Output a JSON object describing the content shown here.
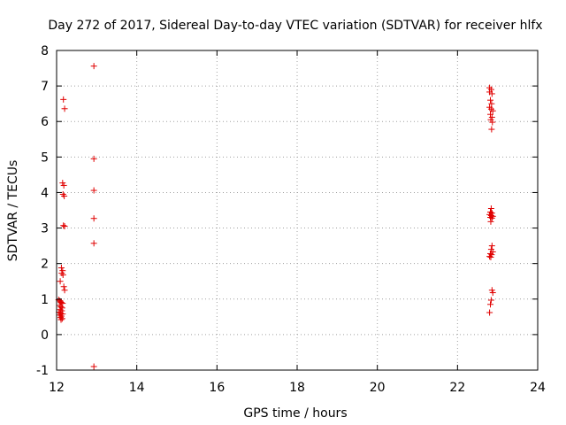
{
  "chart_data": {
    "type": "scatter",
    "title": "Day 272 of 2017, Sidereal Day-to-day VTEC variation (SDTVAR) for receiver hlfx",
    "xlabel": "GPS time / hours",
    "ylabel": "SDTVAR / TECUs",
    "xlim": [
      12,
      24
    ],
    "ylim": [
      -1,
      8
    ],
    "xticks": [
      "12",
      "14",
      "16",
      "18",
      "20",
      "22",
      "24"
    ],
    "yticks": [
      "-1",
      "0",
      "1",
      "2",
      "3",
      "4",
      "5",
      "6",
      "7",
      "8"
    ],
    "grid": true,
    "marker": "+",
    "color": "#e00000",
    "series": [
      {
        "name": "SDTVAR",
        "points": [
          [
            12.17,
            6.62
          ],
          [
            12.2,
            6.36
          ],
          [
            12.15,
            4.27
          ],
          [
            12.18,
            4.2
          ],
          [
            12.16,
            3.95
          ],
          [
            12.19,
            3.9
          ],
          [
            12.17,
            3.07
          ],
          [
            12.2,
            3.05
          ],
          [
            12.12,
            1.88
          ],
          [
            12.15,
            1.8
          ],
          [
            12.13,
            1.73
          ],
          [
            12.16,
            1.68
          ],
          [
            12.09,
            1.5
          ],
          [
            12.18,
            1.35
          ],
          [
            12.2,
            1.25
          ],
          [
            12.05,
            0.98
          ],
          [
            12.08,
            0.95
          ],
          [
            12.1,
            0.92
          ],
          [
            12.12,
            0.9
          ],
          [
            12.15,
            0.88
          ],
          [
            12.07,
            0.82
          ],
          [
            12.11,
            0.78
          ],
          [
            12.14,
            0.75
          ],
          [
            12.09,
            0.7
          ],
          [
            12.13,
            0.67
          ],
          [
            12.06,
            0.63
          ],
          [
            12.1,
            0.6
          ],
          [
            12.15,
            0.58
          ],
          [
            12.08,
            0.55
          ],
          [
            12.12,
            0.52
          ],
          [
            12.1,
            0.48
          ],
          [
            12.14,
            0.45
          ],
          [
            12.11,
            0.42
          ],
          [
            12.93,
            7.56
          ],
          [
            12.93,
            4.95
          ],
          [
            12.93,
            4.06
          ],
          [
            12.93,
            3.27
          ],
          [
            12.93,
            2.57
          ],
          [
            12.93,
            -0.9
          ],
          [
            22.8,
            6.95
          ],
          [
            22.84,
            6.9
          ],
          [
            22.8,
            6.83
          ],
          [
            22.86,
            6.78
          ],
          [
            22.82,
            6.6
          ],
          [
            22.85,
            6.5
          ],
          [
            22.8,
            6.4
          ],
          [
            22.84,
            6.35
          ],
          [
            22.88,
            6.3
          ],
          [
            22.82,
            6.2
          ],
          [
            22.86,
            6.12
          ],
          [
            22.83,
            6.05
          ],
          [
            22.87,
            5.98
          ],
          [
            22.85,
            5.78
          ],
          [
            22.84,
            3.55
          ],
          [
            22.82,
            3.45
          ],
          [
            22.86,
            3.42
          ],
          [
            22.8,
            3.38
          ],
          [
            22.84,
            3.35
          ],
          [
            22.88,
            3.33
          ],
          [
            22.82,
            3.3
          ],
          [
            22.86,
            3.28
          ],
          [
            22.83,
            3.18
          ],
          [
            22.86,
            2.5
          ],
          [
            22.84,
            2.4
          ],
          [
            22.88,
            2.33
          ],
          [
            22.82,
            2.28
          ],
          [
            22.85,
            2.25
          ],
          [
            22.8,
            2.2
          ],
          [
            22.83,
            2.18
          ],
          [
            22.86,
            1.25
          ],
          [
            22.88,
            1.18
          ],
          [
            22.84,
            0.97
          ],
          [
            22.82,
            0.85
          ],
          [
            22.8,
            0.62
          ]
        ]
      }
    ]
  }
}
